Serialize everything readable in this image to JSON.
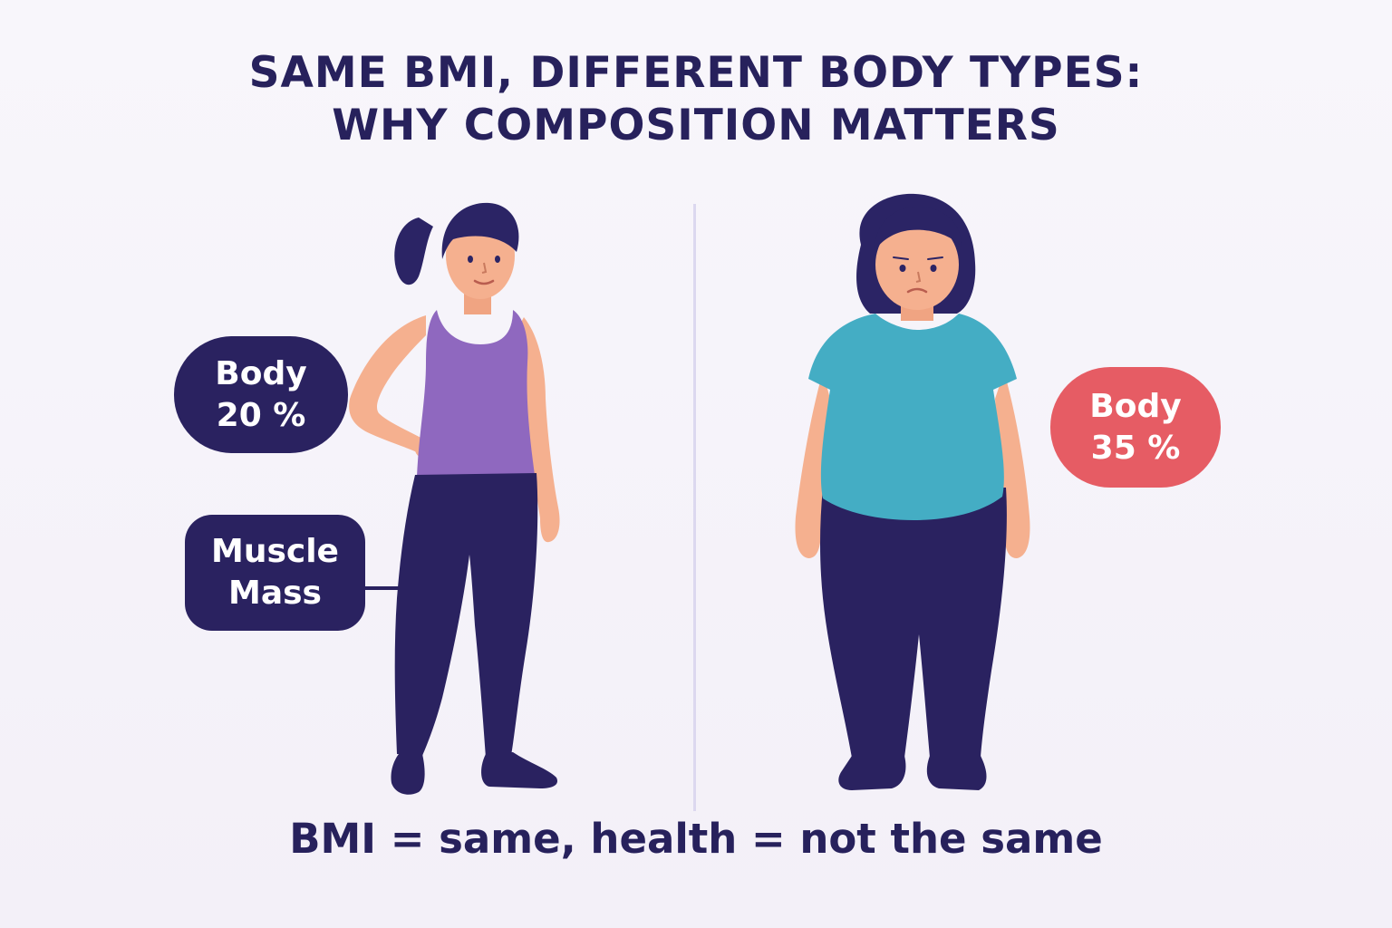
{
  "title": {
    "line1": "SAME BMI, DIFFERENT BODY TYPES:",
    "line2": "WHY COMPOSITION MATTERS"
  },
  "left_figure": {
    "callout_body": {
      "line1": "Body",
      "line2": "20 %"
    },
    "callout_muscle": {
      "line1": "Muscle",
      "line2": "Mass"
    }
  },
  "right_figure": {
    "callout_body": {
      "line1": "Body",
      "line2": "35 %"
    }
  },
  "footer": {
    "caption": "BMI = same, health = not the same"
  },
  "colors": {
    "navy": "#2a2260",
    "title_text": "#27215c",
    "purple_tank": "#8f68bf",
    "teal_shirt": "#44adc4",
    "skin": "#f5b08f",
    "hair": "#2b2465",
    "accent_red": "#e65c64"
  }
}
